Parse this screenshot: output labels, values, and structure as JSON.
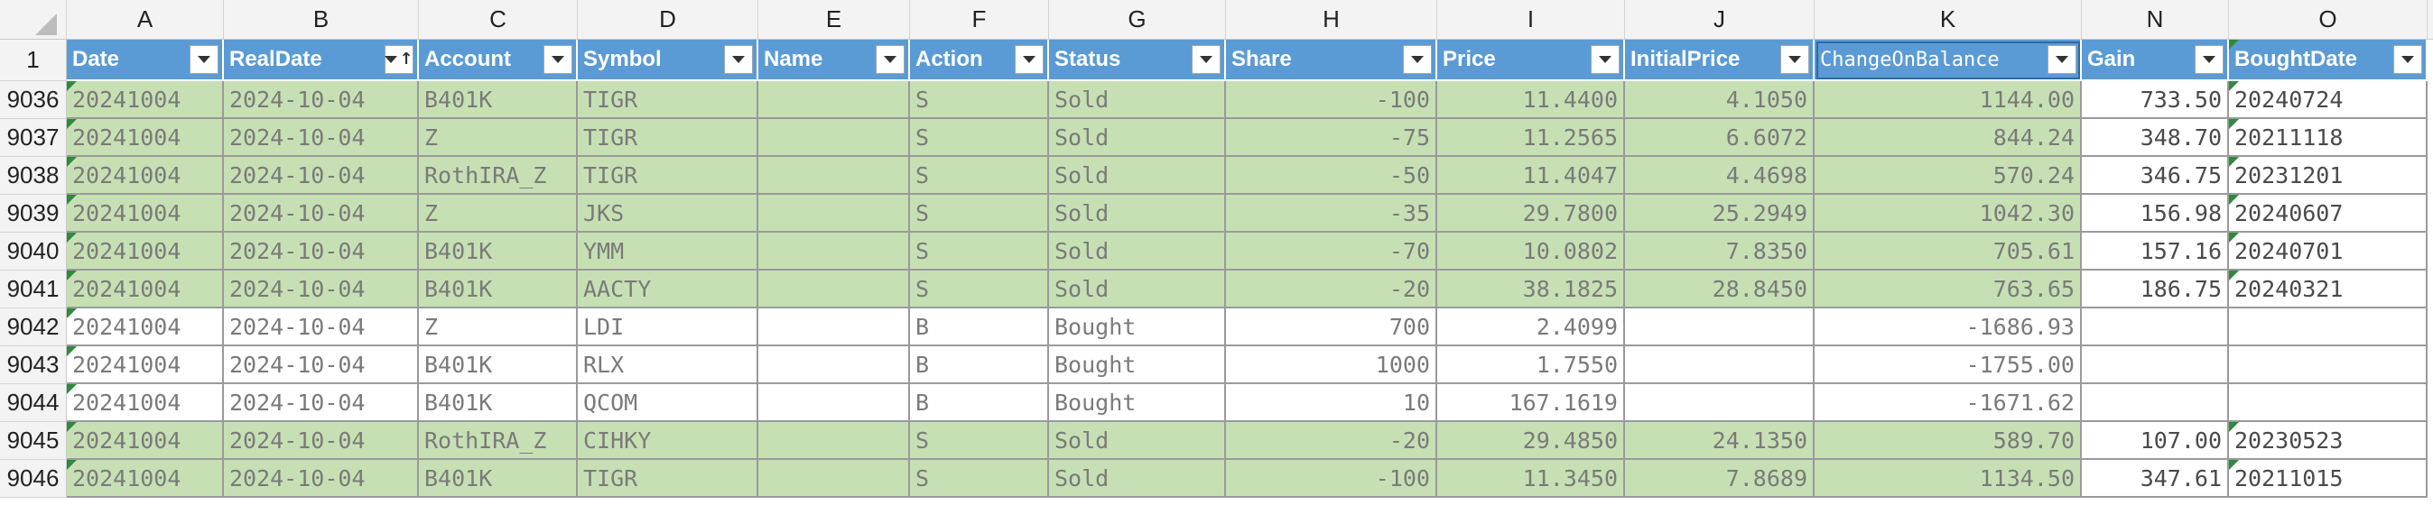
{
  "corner": "",
  "column_letters": [
    "A",
    "B",
    "C",
    "D",
    "E",
    "F",
    "G",
    "H",
    "I",
    "J",
    "K",
    "N",
    "O"
  ],
  "header_row_number": "1",
  "headers": [
    "Date",
    "RealDate",
    "Account",
    "Symbol",
    "Name",
    "Action",
    "Status",
    "Share",
    "Price",
    "InitialPrice",
    "ChangeOnBalance",
    "Gain",
    "BoughtDate"
  ],
  "rows": [
    {
      "n": "9036",
      "cells": [
        "20241004",
        "2024-10-04",
        "B401K",
        "TIGR",
        "",
        "S",
        "Sold",
        "-100",
        "11.4400",
        "4.1050",
        "1144.00",
        "733.50",
        "20240724"
      ],
      "highlight": true
    },
    {
      "n": "9037",
      "cells": [
        "20241004",
        "2024-10-04",
        "Z",
        "TIGR",
        "",
        "S",
        "Sold",
        "-75",
        "11.2565",
        "6.6072",
        "844.24",
        "348.70",
        "20211118"
      ],
      "highlight": true
    },
    {
      "n": "9038",
      "cells": [
        "20241004",
        "2024-10-04",
        "RothIRA_Z",
        "TIGR",
        "",
        "S",
        "Sold",
        "-50",
        "11.4047",
        "4.4698",
        "570.24",
        "346.75",
        "20231201"
      ],
      "highlight": true
    },
    {
      "n": "9039",
      "cells": [
        "20241004",
        "2024-10-04",
        "Z",
        "JKS",
        "",
        "S",
        "Sold",
        "-35",
        "29.7800",
        "25.2949",
        "1042.30",
        "156.98",
        "20240607"
      ],
      "highlight": true
    },
    {
      "n": "9040",
      "cells": [
        "20241004",
        "2024-10-04",
        "B401K",
        "YMM",
        "",
        "S",
        "Sold",
        "-70",
        "10.0802",
        "7.8350",
        "705.61",
        "157.16",
        "20240701"
      ],
      "highlight": true
    },
    {
      "n": "9041",
      "cells": [
        "20241004",
        "2024-10-04",
        "B401K",
        "AACTY",
        "",
        "S",
        "Sold",
        "-20",
        "38.1825",
        "28.8450",
        "763.65",
        "186.75",
        "20240321"
      ],
      "highlight": true
    },
    {
      "n": "9042",
      "cells": [
        "20241004",
        "2024-10-04",
        "Z",
        "LDI",
        "",
        "B",
        "Bought",
        "700",
        "2.4099",
        "",
        "-1686.93",
        "",
        ""
      ],
      "highlight": false
    },
    {
      "n": "9043",
      "cells": [
        "20241004",
        "2024-10-04",
        "B401K",
        "RLX",
        "",
        "B",
        "Bought",
        "1000",
        "1.7550",
        "",
        "-1755.00",
        "",
        ""
      ],
      "highlight": false
    },
    {
      "n": "9044",
      "cells": [
        "20241004",
        "2024-10-04",
        "B401K",
        "QCOM",
        "",
        "B",
        "Bought",
        "10",
        "167.1619",
        "",
        "-1671.62",
        "",
        ""
      ],
      "highlight": false
    },
    {
      "n": "9045",
      "cells": [
        "20241004",
        "2024-10-04",
        "RothIRA_Z",
        "CIHKY",
        "",
        "S",
        "Sold",
        "-20",
        "29.4850",
        "24.1350",
        "589.70",
        "107.00",
        "20230523"
      ],
      "highlight": true
    },
    {
      "n": "9046",
      "cells": [
        "20241004",
        "2024-10-04",
        "B401K",
        "TIGR",
        "",
        "S",
        "Sold",
        "-100",
        "11.3450",
        "7.8689",
        "1134.50",
        "347.61",
        "20211015"
      ],
      "highlight": true
    }
  ],
  "colors": {
    "header_blue": "#5b9bd5",
    "row_green": "#c6e0b4",
    "flag_green": "#2f8a3e"
  },
  "icons": {
    "filter": "filter-dropdown-icon",
    "sort": "sort-ascending-icon"
  }
}
